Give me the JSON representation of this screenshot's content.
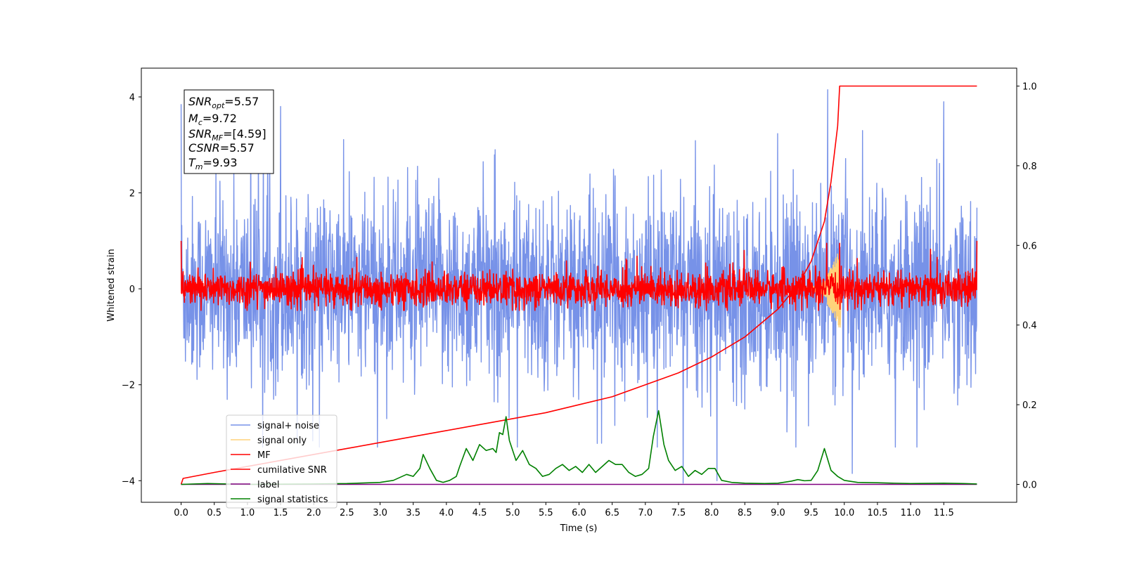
{
  "chart_data": {
    "type": "line",
    "xlabel": "Time (s)",
    "ylabel": "Whitened strain",
    "xlim": [
      -0.6,
      12.6
    ],
    "ylim": [
      -4.45,
      4.6
    ],
    "y2lim": [
      -0.045,
      1.045
    ],
    "xticks": [
      "0.0",
      "0.5",
      "1.0",
      "1.5",
      "2.0",
      "2.5",
      "3.0",
      "3.5",
      "4.0",
      "4.5",
      "5.0",
      "5.5",
      "6.0",
      "6.5",
      "7.0",
      "7.5",
      "8.0",
      "8.5",
      "9.0",
      "9.5",
      "10.0",
      "10.5",
      "11.0",
      "11.5"
    ],
    "yticks": [
      "4",
      "2",
      "0",
      "−2",
      "−4"
    ],
    "y2ticks": [
      "1.0",
      "0.8",
      "0.6",
      "0.4",
      "0.2",
      "0.0"
    ],
    "annotation": {
      "snr_opt": {
        "sym": "SNR",
        "sub": "opt",
        "value": "=5.57"
      },
      "mc": {
        "sym": "M",
        "sub": "c",
        "value": "=9.72"
      },
      "snr_mf": {
        "sym": "SNR",
        "sub": "MF",
        "value": "=[4.59]"
      },
      "csnr": {
        "sym": "CSNR",
        "sub": "",
        "value": "=5.57"
      },
      "tm": {
        "sym": "T",
        "sub": "m",
        "value": "=9.93"
      }
    },
    "legend": {
      "placement": "lower-left",
      "entries": [
        {
          "label": "signal+ noise",
          "color": "#7792e8"
        },
        {
          "label": "signal only",
          "color": "#ffd27a"
        },
        {
          "label": "MF",
          "color": "#ff0000"
        },
        {
          "label": "cumilative SNR",
          "color": "#ff0000"
        },
        {
          "label": "label",
          "color": "#800080"
        },
        {
          "label": "signal statistics",
          "color": "#008000"
        }
      ]
    },
    "series": [
      {
        "name": "signal+ noise",
        "axis": "left",
        "color": "#7792e8",
        "x_range": [
          0,
          12.0
        ],
        "amplitude": 4.2,
        "peaks": [
          [
            0.0,
            3.85
          ],
          [
            1.05,
            4.0
          ],
          [
            1.5,
            3.8
          ],
          [
            9.75,
            4.15
          ],
          [
            11.5,
            3.9
          ],
          [
            7.57,
            -4.05
          ],
          [
            8.08,
            -4.0
          ],
          [
            10.12,
            -3.85
          ]
        ]
      },
      {
        "name": "signal only",
        "axis": "left",
        "color": "#ffd27a",
        "chirp_x": [
          9.3,
          9.93
        ],
        "peak": 0.8
      },
      {
        "name": "MF",
        "axis": "left",
        "color": "#ff0000",
        "x_range": [
          0,
          12.0
        ],
        "amplitude": 0.95,
        "endpoints": [
          1.0,
          1.0
        ]
      },
      {
        "name": "cumilative SNR",
        "axis": "right",
        "color": "#ff0000",
        "x": [
          0.0,
          0.03,
          0.5,
          1.0,
          1.5,
          2.0,
          2.5,
          3.0,
          3.5,
          4.0,
          4.5,
          5.0,
          5.5,
          6.0,
          6.5,
          7.0,
          7.5,
          8.0,
          8.5,
          9.0,
          9.3,
          9.5,
          9.7,
          9.8,
          9.9,
          9.93,
          12.0
        ],
        "y": [
          0.0,
          0.015,
          0.03,
          0.045,
          0.06,
          0.075,
          0.09,
          0.105,
          0.12,
          0.135,
          0.15,
          0.165,
          0.18,
          0.2,
          0.22,
          0.25,
          0.28,
          0.32,
          0.37,
          0.44,
          0.5,
          0.56,
          0.66,
          0.76,
          0.9,
          1.0,
          1.0
        ]
      },
      {
        "name": "label",
        "axis": "right",
        "color": "#800080",
        "x": [
          0.0,
          12.0
        ],
        "y": [
          0.0,
          0.0
        ]
      },
      {
        "name": "signal statistics",
        "axis": "right",
        "color": "#008000",
        "x": [
          0.0,
          0.4,
          1.0,
          2.0,
          2.5,
          3.0,
          3.2,
          3.4,
          3.5,
          3.6,
          3.65,
          3.75,
          3.85,
          3.95,
          4.05,
          4.15,
          4.2,
          4.3,
          4.4,
          4.5,
          4.6,
          4.7,
          4.75,
          4.8,
          4.85,
          4.9,
          4.95,
          5.05,
          5.15,
          5.25,
          5.35,
          5.45,
          5.55,
          5.65,
          5.75,
          5.85,
          5.95,
          6.05,
          6.15,
          6.25,
          6.35,
          6.45,
          6.55,
          6.65,
          6.75,
          6.85,
          6.95,
          7.05,
          7.12,
          7.2,
          7.28,
          7.35,
          7.45,
          7.55,
          7.65,
          7.75,
          7.85,
          7.95,
          8.05,
          8.15,
          8.3,
          8.5,
          8.8,
          9.0,
          9.2,
          9.3,
          9.4,
          9.5,
          9.6,
          9.7,
          9.8,
          9.9,
          10.0,
          10.2,
          10.5,
          11.0,
          11.5,
          11.8,
          12.0
        ],
        "y": [
          0.0,
          0.002,
          0.0,
          0.001,
          0.002,
          0.005,
          0.01,
          0.025,
          0.02,
          0.04,
          0.075,
          0.04,
          0.01,
          0.005,
          0.01,
          0.02,
          0.045,
          0.09,
          0.06,
          0.1,
          0.085,
          0.09,
          0.08,
          0.13,
          0.125,
          0.17,
          0.11,
          0.06,
          0.085,
          0.05,
          0.04,
          0.02,
          0.025,
          0.04,
          0.05,
          0.035,
          0.045,
          0.03,
          0.05,
          0.03,
          0.045,
          0.06,
          0.05,
          0.05,
          0.03,
          0.02,
          0.025,
          0.04,
          0.12,
          0.185,
          0.1,
          0.06,
          0.035,
          0.045,
          0.02,
          0.035,
          0.025,
          0.04,
          0.04,
          0.01,
          0.005,
          0.003,
          0.002,
          0.003,
          0.008,
          0.012,
          0.009,
          0.01,
          0.035,
          0.09,
          0.035,
          0.02,
          0.01,
          0.005,
          0.004,
          0.002,
          0.003,
          0.002,
          0.001
        ]
      }
    ]
  }
}
